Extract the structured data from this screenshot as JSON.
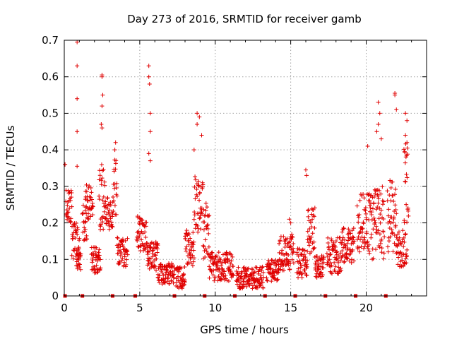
{
  "chart_data": {
    "type": "scatter",
    "title": "Day 273 of 2016, SRMTID for receiver gamb",
    "xlabel": "GPS time / hours",
    "ylabel": "SRMTID / TECUs",
    "xlim": [
      0,
      24
    ],
    "ylim": [
      0,
      0.7
    ],
    "x_ticks": [
      0,
      5,
      10,
      15,
      20
    ],
    "x_tick_labels": [
      "0",
      "5",
      "10",
      "15",
      "20"
    ],
    "y_ticks": [
      0,
      0.1,
      0.2,
      0.3,
      0.4,
      0.5,
      0.6,
      0.7
    ],
    "y_tick_labels": [
      "0",
      "0.1",
      "0.2",
      "0.3",
      "0.4",
      "0.5",
      "0.6",
      "0.7"
    ],
    "grid": true,
    "marker": "+",
    "series_color": "#e00000",
    "zero_markers_x": [
      0.05,
      1.2,
      3.2,
      4.7,
      7.3,
      9.3,
      11.3,
      13.3,
      15.3,
      17.3,
      19.3,
      21.3
    ],
    "segments": [
      {
        "x0": 0.05,
        "x1": 0.05,
        "base": 0.36,
        "spread": 0.0
      },
      {
        "x0": 0.1,
        "x1": 0.5,
        "base": 0.24,
        "spread": 0.05
      },
      {
        "x0": 0.5,
        "x1": 1.0,
        "base": 0.15,
        "spread": 0.05
      },
      {
        "x0": 0.8,
        "x1": 1.1,
        "base": 0.1,
        "spread": 0.03
      },
      {
        "x0": 1.2,
        "x1": 1.5,
        "base": 0.2,
        "spread": 0.05
      },
      {
        "x0": 1.4,
        "x1": 1.9,
        "base": 0.26,
        "spread": 0.05
      },
      {
        "x0": 1.8,
        "x1": 2.4,
        "base": 0.1,
        "spread": 0.04
      },
      {
        "x0": 2.3,
        "x1": 2.7,
        "base": 0.27,
        "spread": 0.09
      },
      {
        "x0": 2.7,
        "x1": 3.2,
        "base": 0.22,
        "spread": 0.05
      },
      {
        "x0": 3.2,
        "x1": 3.5,
        "base": 0.3,
        "spread": 0.08
      },
      {
        "x0": 3.5,
        "x1": 4.2,
        "base": 0.12,
        "spread": 0.04
      },
      {
        "x0": 4.8,
        "x1": 5.5,
        "base": 0.17,
        "spread": 0.05
      },
      {
        "x0": 5.5,
        "x1": 6.2,
        "base": 0.11,
        "spread": 0.04
      },
      {
        "x0": 6.2,
        "x1": 7.3,
        "base": 0.06,
        "spread": 0.03
      },
      {
        "x0": 7.4,
        "x1": 8.0,
        "base": 0.05,
        "spread": 0.03
      },
      {
        "x0": 8.0,
        "x1": 8.6,
        "base": 0.13,
        "spread": 0.05
      },
      {
        "x0": 8.6,
        "x1": 9.2,
        "base": 0.25,
        "spread": 0.08
      },
      {
        "x0": 9.2,
        "x1": 9.6,
        "base": 0.18,
        "spread": 0.08
      },
      {
        "x0": 9.6,
        "x1": 11.2,
        "base": 0.08,
        "spread": 0.04
      },
      {
        "x0": 11.4,
        "x1": 13.2,
        "base": 0.05,
        "spread": 0.03
      },
      {
        "x0": 13.4,
        "x1": 14.2,
        "base": 0.07,
        "spread": 0.03
      },
      {
        "x0": 14.2,
        "x1": 15.2,
        "base": 0.12,
        "spread": 0.05
      },
      {
        "x0": 15.4,
        "x1": 16.1,
        "base": 0.09,
        "spread": 0.04
      },
      {
        "x0": 16.1,
        "x1": 16.6,
        "base": 0.18,
        "spread": 0.07
      },
      {
        "x0": 16.6,
        "x1": 17.2,
        "base": 0.08,
        "spread": 0.03
      },
      {
        "x0": 17.4,
        "x1": 18.4,
        "base": 0.11,
        "spread": 0.05
      },
      {
        "x0": 18.4,
        "x1": 19.2,
        "base": 0.14,
        "spread": 0.05
      },
      {
        "x0": 19.4,
        "x1": 20.2,
        "base": 0.2,
        "spread": 0.08
      },
      {
        "x0": 20.2,
        "x1": 21.2,
        "base": 0.2,
        "spread": 0.1
      },
      {
        "x0": 21.4,
        "x1": 22.0,
        "base": 0.22,
        "spread": 0.1
      },
      {
        "x0": 22.0,
        "x1": 22.7,
        "base": 0.13,
        "spread": 0.05
      },
      {
        "x0": 22.5,
        "x1": 22.8,
        "base": 0.3,
        "spread": 0.12
      }
    ],
    "peaks": [
      [
        0.85,
        0.695
      ],
      [
        0.85,
        0.63
      ],
      [
        0.85,
        0.54
      ],
      [
        0.85,
        0.45
      ],
      [
        0.85,
        0.355
      ],
      [
        2.5,
        0.605
      ],
      [
        2.5,
        0.6
      ],
      [
        2.55,
        0.55
      ],
      [
        2.5,
        0.52
      ],
      [
        2.45,
        0.47
      ],
      [
        2.5,
        0.46
      ],
      [
        5.6,
        0.63
      ],
      [
        5.6,
        0.6
      ],
      [
        5.65,
        0.58
      ],
      [
        5.7,
        0.5
      ],
      [
        5.7,
        0.45
      ],
      [
        5.6,
        0.39
      ],
      [
        5.7,
        0.37
      ],
      [
        8.8,
        0.5
      ],
      [
        8.95,
        0.49
      ],
      [
        8.8,
        0.47
      ],
      [
        8.6,
        0.4
      ],
      [
        9.1,
        0.44
      ],
      [
        20.8,
        0.53
      ],
      [
        20.9,
        0.5
      ],
      [
        20.8,
        0.47
      ],
      [
        20.7,
        0.45
      ],
      [
        21.0,
        0.43
      ],
      [
        20.1,
        0.41
      ],
      [
        21.9,
        0.555
      ],
      [
        21.9,
        0.55
      ],
      [
        22.0,
        0.51
      ],
      [
        22.6,
        0.5
      ],
      [
        22.7,
        0.48
      ],
      [
        22.6,
        0.44
      ],
      [
        22.7,
        0.42
      ],
      [
        16.0,
        0.345
      ],
      [
        16.05,
        0.33
      ],
      [
        3.4,
        0.42
      ],
      [
        3.35,
        0.4
      ],
      [
        14.9,
        0.21
      ],
      [
        15.0,
        0.2
      ]
    ]
  }
}
